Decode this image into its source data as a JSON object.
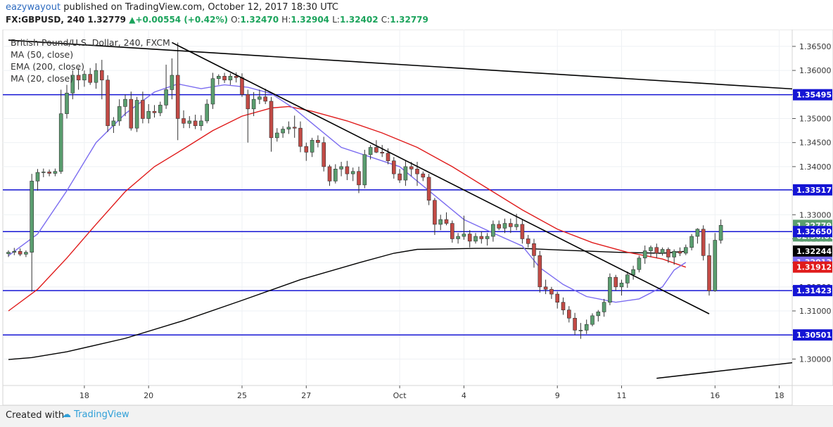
{
  "header": {
    "author": "eazywayout",
    "published_text": "published on TradingView.com, October 12, 2017 18:30 UTC",
    "symbol_line": "FX:GBPUSD, 240",
    "last": "1.32779",
    "change": "+0.00554 (+0.42%)",
    "ohlc": {
      "O": "1.32470",
      "H": "1.32904",
      "L": "1.32402",
      "C": "1.32779"
    }
  },
  "legend": {
    "title": "British Pound/U.S. Dollar, 240, FXCM",
    "items": [
      "MA (50, close)",
      "EMA (200, close)",
      "MA (20, close)"
    ]
  },
  "footer": {
    "created_with": "Created with",
    "brand": "TradingView"
  },
  "colors": {
    "up": "#5a9e6f",
    "down": "#c24a45",
    "hline": "#1515d4",
    "ema200": "#000000",
    "ma50": "#e01b1b",
    "ma20": "#7b6cf0",
    "trend": "#000000",
    "axis_bg": "#ffffff",
    "grid": "#eef1f4"
  },
  "chart_data": {
    "type": "candlestick",
    "ylim": [
      1.2945,
      1.3685
    ],
    "y_ticks": [
      "1.36500",
      "1.36000",
      "1.35500",
      "1.35000",
      "1.34500",
      "1.34000",
      "1.33500",
      "1.33000",
      "1.32500",
      "1.32000",
      "1.31500",
      "1.31000",
      "1.30500",
      "1.30000"
    ],
    "x_labels": [
      {
        "label": "18",
        "i": 13
      },
      {
        "label": "20",
        "i": 24
      },
      {
        "label": "25",
        "i": 40
      },
      {
        "label": "27",
        "i": 51
      },
      {
        "label": "Oct",
        "i": 67
      },
      {
        "label": "4",
        "i": 78
      },
      {
        "label": "9",
        "i": 94
      },
      {
        "label": "11",
        "i": 105
      },
      {
        "label": "16",
        "i": 121
      },
      {
        "label": "18",
        "i": 132
      }
    ],
    "horizontal_levels": [
      "1.35495",
      "1.33517",
      "1.32650",
      "1.31423",
      "1.30501"
    ],
    "price_tags": [
      {
        "text": "1.35495",
        "value": 1.35495,
        "bg": "#1515d4",
        "fg": "#ffffff"
      },
      {
        "text": "1.33517",
        "value": 1.33517,
        "bg": "#1515d4",
        "fg": "#ffffff"
      },
      {
        "text": "1.32779",
        "value": 1.32779,
        "bg": "#5a9e6f",
        "fg": "#ffffff"
      },
      {
        "text": "02:30:00",
        "value": 1.3256,
        "bg": "#5a9e6f",
        "fg": "#ffffff"
      },
      {
        "text": "1.32650",
        "value": 1.3265,
        "bg": "#1515d4",
        "fg": "#ffffff"
      },
      {
        "text": "1.32244",
        "value": 1.32244,
        "bg": "#000000",
        "fg": "#ffffff"
      },
      {
        "text": "1.32013",
        "value": 1.32013,
        "bg": "#7b6cf0",
        "fg": "#ffffff"
      },
      {
        "text": "1.31912",
        "value": 1.31912,
        "bg": "#e01b1b",
        "fg": "#ffffff"
      },
      {
        "text": "1.31423",
        "value": 1.31423,
        "bg": "#1515d4",
        "fg": "#ffffff"
      },
      {
        "text": "1.30501",
        "value": 1.30501,
        "bg": "#1515d4",
        "fg": "#ffffff"
      }
    ],
    "candles": [
      [
        1.3219,
        1.3226,
        1.3212,
        1.3222
      ],
      [
        1.3222,
        1.3231,
        1.3216,
        1.3224
      ],
      [
        1.3224,
        1.323,
        1.3214,
        1.3218
      ],
      [
        1.3218,
        1.3226,
        1.3212,
        1.3222
      ],
      [
        1.3222,
        1.3385,
        1.314,
        1.337
      ],
      [
        1.337,
        1.3395,
        1.335,
        1.3388
      ],
      [
        1.3388,
        1.3396,
        1.3378,
        1.3389
      ],
      [
        1.3389,
        1.3394,
        1.338,
        1.3386
      ],
      [
        1.3386,
        1.3396,
        1.338,
        1.339
      ],
      [
        1.339,
        1.356,
        1.3385,
        1.351
      ],
      [
        1.351,
        1.357,
        1.35,
        1.3553
      ],
      [
        1.3553,
        1.36,
        1.354,
        1.359
      ],
      [
        1.359,
        1.3605,
        1.356,
        1.358
      ],
      [
        1.358,
        1.36,
        1.3566,
        1.3592
      ],
      [
        1.3592,
        1.3605,
        1.357,
        1.3575
      ],
      [
        1.3575,
        1.3615,
        1.3562,
        1.36
      ],
      [
        1.36,
        1.3622,
        1.354,
        1.358
      ],
      [
        1.358,
        1.359,
        1.3472,
        1.3485
      ],
      [
        1.3485,
        1.3503,
        1.347,
        1.3495
      ],
      [
        1.3495,
        1.354,
        1.3485,
        1.3525
      ],
      [
        1.3525,
        1.355,
        1.3505,
        1.354
      ],
      [
        1.354,
        1.3556,
        1.3475,
        1.348
      ],
      [
        1.348,
        1.3545,
        1.3472,
        1.3538
      ],
      [
        1.3538,
        1.3556,
        1.349,
        1.35
      ],
      [
        1.35,
        1.353,
        1.349,
        1.3515
      ],
      [
        1.3515,
        1.3528,
        1.3502,
        1.3512
      ],
      [
        1.3512,
        1.3535,
        1.3505,
        1.3528
      ],
      [
        1.3528,
        1.3612,
        1.352,
        1.356
      ],
      [
        1.356,
        1.3625,
        1.354,
        1.359
      ],
      [
        1.359,
        1.3658,
        1.3455,
        1.35
      ],
      [
        1.35,
        1.3517,
        1.348,
        1.349
      ],
      [
        1.349,
        1.3505,
        1.348,
        1.3495
      ],
      [
        1.3495,
        1.3508,
        1.3478,
        1.3485
      ],
      [
        1.3485,
        1.3507,
        1.3475,
        1.3495
      ],
      [
        1.3495,
        1.354,
        1.349,
        1.353
      ],
      [
        1.353,
        1.3595,
        1.352,
        1.3583
      ],
      [
        1.3583,
        1.3592,
        1.357,
        1.3588
      ],
      [
        1.3588,
        1.3595,
        1.3574,
        1.358
      ],
      [
        1.358,
        1.3594,
        1.357,
        1.3588
      ],
      [
        1.3588,
        1.3596,
        1.3575,
        1.3585
      ],
      [
        1.3585,
        1.3594,
        1.3545,
        1.355
      ],
      [
        1.355,
        1.356,
        1.345,
        1.352
      ],
      [
        1.352,
        1.3555,
        1.3505,
        1.354
      ],
      [
        1.354,
        1.356,
        1.353,
        1.3545
      ],
      [
        1.3545,
        1.3562,
        1.353,
        1.3536
      ],
      [
        1.3536,
        1.3545,
        1.3431,
        1.346
      ],
      [
        1.346,
        1.348,
        1.3452,
        1.347
      ],
      [
        1.347,
        1.3484,
        1.346,
        1.3478
      ],
      [
        1.3478,
        1.3494,
        1.3468,
        1.3482
      ],
      [
        1.3482,
        1.3506,
        1.346,
        1.348
      ],
      [
        1.348,
        1.3494,
        1.343,
        1.3442
      ],
      [
        1.3442,
        1.345,
        1.3412,
        1.343
      ],
      [
        1.343,
        1.346,
        1.342,
        1.3455
      ],
      [
        1.3455,
        1.3465,
        1.344,
        1.345
      ],
      [
        1.345,
        1.3462,
        1.339,
        1.34
      ],
      [
        1.34,
        1.3404,
        1.336,
        1.337
      ],
      [
        1.337,
        1.3405,
        1.3365,
        1.3395
      ],
      [
        1.3395,
        1.341,
        1.338,
        1.34
      ],
      [
        1.34,
        1.3412,
        1.3372,
        1.3385
      ],
      [
        1.3385,
        1.3398,
        1.337,
        1.339
      ],
      [
        1.339,
        1.34,
        1.3345,
        1.3362
      ],
      [
        1.3362,
        1.3435,
        1.3355,
        1.3425
      ],
      [
        1.3425,
        1.3445,
        1.3415,
        1.344
      ],
      [
        1.344,
        1.3455,
        1.3428,
        1.343
      ],
      [
        1.343,
        1.3445,
        1.342,
        1.3428
      ],
      [
        1.3428,
        1.3438,
        1.3405,
        1.3412
      ],
      [
        1.3412,
        1.342,
        1.3375,
        1.3385
      ],
      [
        1.3385,
        1.3395,
        1.3366,
        1.3372
      ],
      [
        1.3372,
        1.3412,
        1.336,
        1.34
      ],
      [
        1.34,
        1.341,
        1.338,
        1.3395
      ],
      [
        1.3395,
        1.341,
        1.336,
        1.3385
      ],
      [
        1.3385,
        1.339,
        1.337,
        1.3378
      ],
      [
        1.3378,
        1.3385,
        1.332,
        1.333
      ],
      [
        1.333,
        1.3335,
        1.3258,
        1.328
      ],
      [
        1.328,
        1.33,
        1.3268,
        1.329
      ],
      [
        1.329,
        1.3305,
        1.3278,
        1.3282
      ],
      [
        1.3282,
        1.3288,
        1.3242,
        1.325
      ],
      [
        1.325,
        1.3262,
        1.324,
        1.3255
      ],
      [
        1.3255,
        1.3298,
        1.3248,
        1.326
      ],
      [
        1.326,
        1.3268,
        1.3232,
        1.3245
      ],
      [
        1.3245,
        1.3262,
        1.324,
        1.3255
      ],
      [
        1.3255,
        1.3265,
        1.324,
        1.325
      ],
      [
        1.325,
        1.3262,
        1.3236,
        1.3255
      ],
      [
        1.3255,
        1.3288,
        1.3244,
        1.328
      ],
      [
        1.328,
        1.3288,
        1.3268,
        1.3272
      ],
      [
        1.3272,
        1.3292,
        1.3262,
        1.3282
      ],
      [
        1.3282,
        1.3292,
        1.3262,
        1.3275
      ],
      [
        1.3275,
        1.3302,
        1.3268,
        1.328
      ],
      [
        1.328,
        1.329,
        1.324,
        1.325
      ],
      [
        1.325,
        1.3258,
        1.3232,
        1.324
      ],
      [
        1.324,
        1.325,
        1.319,
        1.3215
      ],
      [
        1.3215,
        1.3225,
        1.3138,
        1.315
      ],
      [
        1.315,
        1.3165,
        1.3135,
        1.3145
      ],
      [
        1.3145,
        1.315,
        1.3125,
        1.3135
      ],
      [
        1.3135,
        1.314,
        1.3105,
        1.3118
      ],
      [
        1.3118,
        1.3128,
        1.3092,
        1.3102
      ],
      [
        1.3102,
        1.311,
        1.3076,
        1.3085
      ],
      [
        1.3085,
        1.3096,
        1.305,
        1.306
      ],
      [
        1.306,
        1.3075,
        1.3042,
        1.306
      ],
      [
        1.306,
        1.3082,
        1.3052,
        1.3072
      ],
      [
        1.3072,
        1.3095,
        1.3068,
        1.309
      ],
      [
        1.309,
        1.3102,
        1.3078,
        1.3098
      ],
      [
        1.3098,
        1.3125,
        1.3088,
        1.3118
      ],
      [
        1.3118,
        1.3178,
        1.3112,
        1.317
      ],
      [
        1.317,
        1.3175,
        1.3142,
        1.315
      ],
      [
        1.315,
        1.3165,
        1.3132,
        1.3158
      ],
      [
        1.3158,
        1.3182,
        1.3148,
        1.3175
      ],
      [
        1.3175,
        1.3194,
        1.3165,
        1.3186
      ],
      [
        1.3186,
        1.3215,
        1.318,
        1.321
      ],
      [
        1.321,
        1.3236,
        1.3198,
        1.3225
      ],
      [
        1.3225,
        1.3236,
        1.3212,
        1.3232
      ],
      [
        1.3232,
        1.324,
        1.321,
        1.322
      ],
      [
        1.322,
        1.3232,
        1.3215,
        1.3228
      ],
      [
        1.3228,
        1.3232,
        1.32,
        1.3212
      ],
      [
        1.3212,
        1.3228,
        1.3196,
        1.3224
      ],
      [
        1.3224,
        1.3232,
        1.3214,
        1.322
      ],
      [
        1.322,
        1.3238,
        1.3216,
        1.3232
      ],
      [
        1.3232,
        1.326,
        1.3226,
        1.3255
      ],
      [
        1.3255,
        1.3272,
        1.324,
        1.327
      ],
      [
        1.327,
        1.3278,
        1.3205,
        1.3215
      ],
      [
        1.3215,
        1.324,
        1.3132,
        1.3142
      ],
      [
        1.3142,
        1.3262,
        1.314,
        1.3247
      ],
      [
        1.3247,
        1.329,
        1.324,
        1.3278
      ]
    ],
    "ema200": [
      [
        0,
        1.2999
      ],
      [
        4,
        1.3003
      ],
      [
        10,
        1.3015
      ],
      [
        20,
        1.3043
      ],
      [
        30,
        1.308
      ],
      [
        40,
        1.3122
      ],
      [
        50,
        1.3165
      ],
      [
        60,
        1.32
      ],
      [
        66,
        1.322
      ],
      [
        70,
        1.3228
      ],
      [
        80,
        1.323
      ],
      [
        88,
        1.323
      ],
      [
        96,
        1.3226
      ],
      [
        104,
        1.3222
      ],
      [
        112,
        1.322
      ],
      [
        116,
        1.3224
      ]
    ],
    "ma50": [
      [
        0,
        1.31
      ],
      [
        5,
        1.3145
      ],
      [
        10,
        1.321
      ],
      [
        15,
        1.328
      ],
      [
        20,
        1.3348
      ],
      [
        25,
        1.34
      ],
      [
        30,
        1.3437
      ],
      [
        35,
        1.3475
      ],
      [
        40,
        1.3505
      ],
      [
        45,
        1.3522
      ],
      [
        48,
        1.3525
      ],
      [
        52,
        1.3515
      ],
      [
        58,
        1.3495
      ],
      [
        64,
        1.347
      ],
      [
        70,
        1.344
      ],
      [
        76,
        1.34
      ],
      [
        82,
        1.3355
      ],
      [
        88,
        1.331
      ],
      [
        94,
        1.327
      ],
      [
        100,
        1.3242
      ],
      [
        106,
        1.3222
      ],
      [
        112,
        1.3208
      ],
      [
        116,
        1.3191
      ]
    ],
    "ma20": [
      [
        0,
        1.3215
      ],
      [
        5,
        1.326
      ],
      [
        10,
        1.335
      ],
      [
        15,
        1.345
      ],
      [
        20,
        1.351
      ],
      [
        25,
        1.3555
      ],
      [
        29,
        1.3572
      ],
      [
        33,
        1.3562
      ],
      [
        37,
        1.357
      ],
      [
        41,
        1.3565
      ],
      [
        45,
        1.3552
      ],
      [
        49,
        1.352
      ],
      [
        53,
        1.348
      ],
      [
        57,
        1.344
      ],
      [
        62,
        1.342
      ],
      [
        67,
        1.34
      ],
      [
        72,
        1.335
      ],
      [
        78,
        1.329
      ],
      [
        83,
        1.3262
      ],
      [
        88,
        1.3235
      ],
      [
        91,
        1.319
      ],
      [
        95,
        1.3155
      ],
      [
        99,
        1.313
      ],
      [
        104,
        1.3118
      ],
      [
        108,
        1.3125
      ],
      [
        112,
        1.315
      ],
      [
        114,
        1.3185
      ],
      [
        116,
        1.3201
      ]
    ],
    "trendlines": [
      {
        "from": [
          0,
          1.3663
        ],
        "to": [
          139,
          1.3558
        ]
      },
      {
        "from": [
          28,
          1.3658
        ],
        "to": [
          120,
          1.3094
        ]
      },
      {
        "from": [
          111,
          1.296
        ],
        "to": [
          139,
          1.2999
        ]
      }
    ]
  }
}
